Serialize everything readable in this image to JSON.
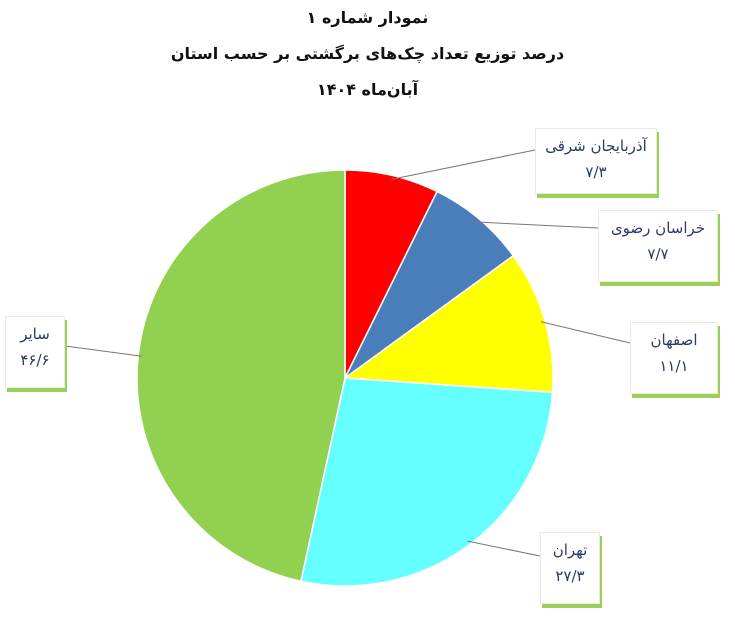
{
  "chart_data": {
    "type": "pie",
    "title_lines": [
      "نمودار شماره ۱",
      "درصد توزیع تعداد چک‌های برگشتی بر حسب استان",
      "آبان‌ماه ۱۴۰۴"
    ],
    "slices": [
      {
        "label": "آذربایجان شرقی",
        "value": 7.3,
        "value_label": "۷/۳",
        "color": "#ff0000"
      },
      {
        "label": "خراسان رضوی",
        "value": 7.7,
        "value_label": "۷/۷",
        "color": "#4a7ebb"
      },
      {
        "label": "اصفهان",
        "value": 11.1,
        "value_label": "۱۱/۱",
        "color": "#ffff00"
      },
      {
        "label": "تهران",
        "value": 27.3,
        "value_label": "۲۷/۳",
        "color": "#66ffff"
      },
      {
        "label": "سایر",
        "value": 46.6,
        "value_label": "۴۶/۶",
        "color": "#92d050"
      }
    ],
    "start_angle": "top",
    "direction": "clockwise"
  }
}
